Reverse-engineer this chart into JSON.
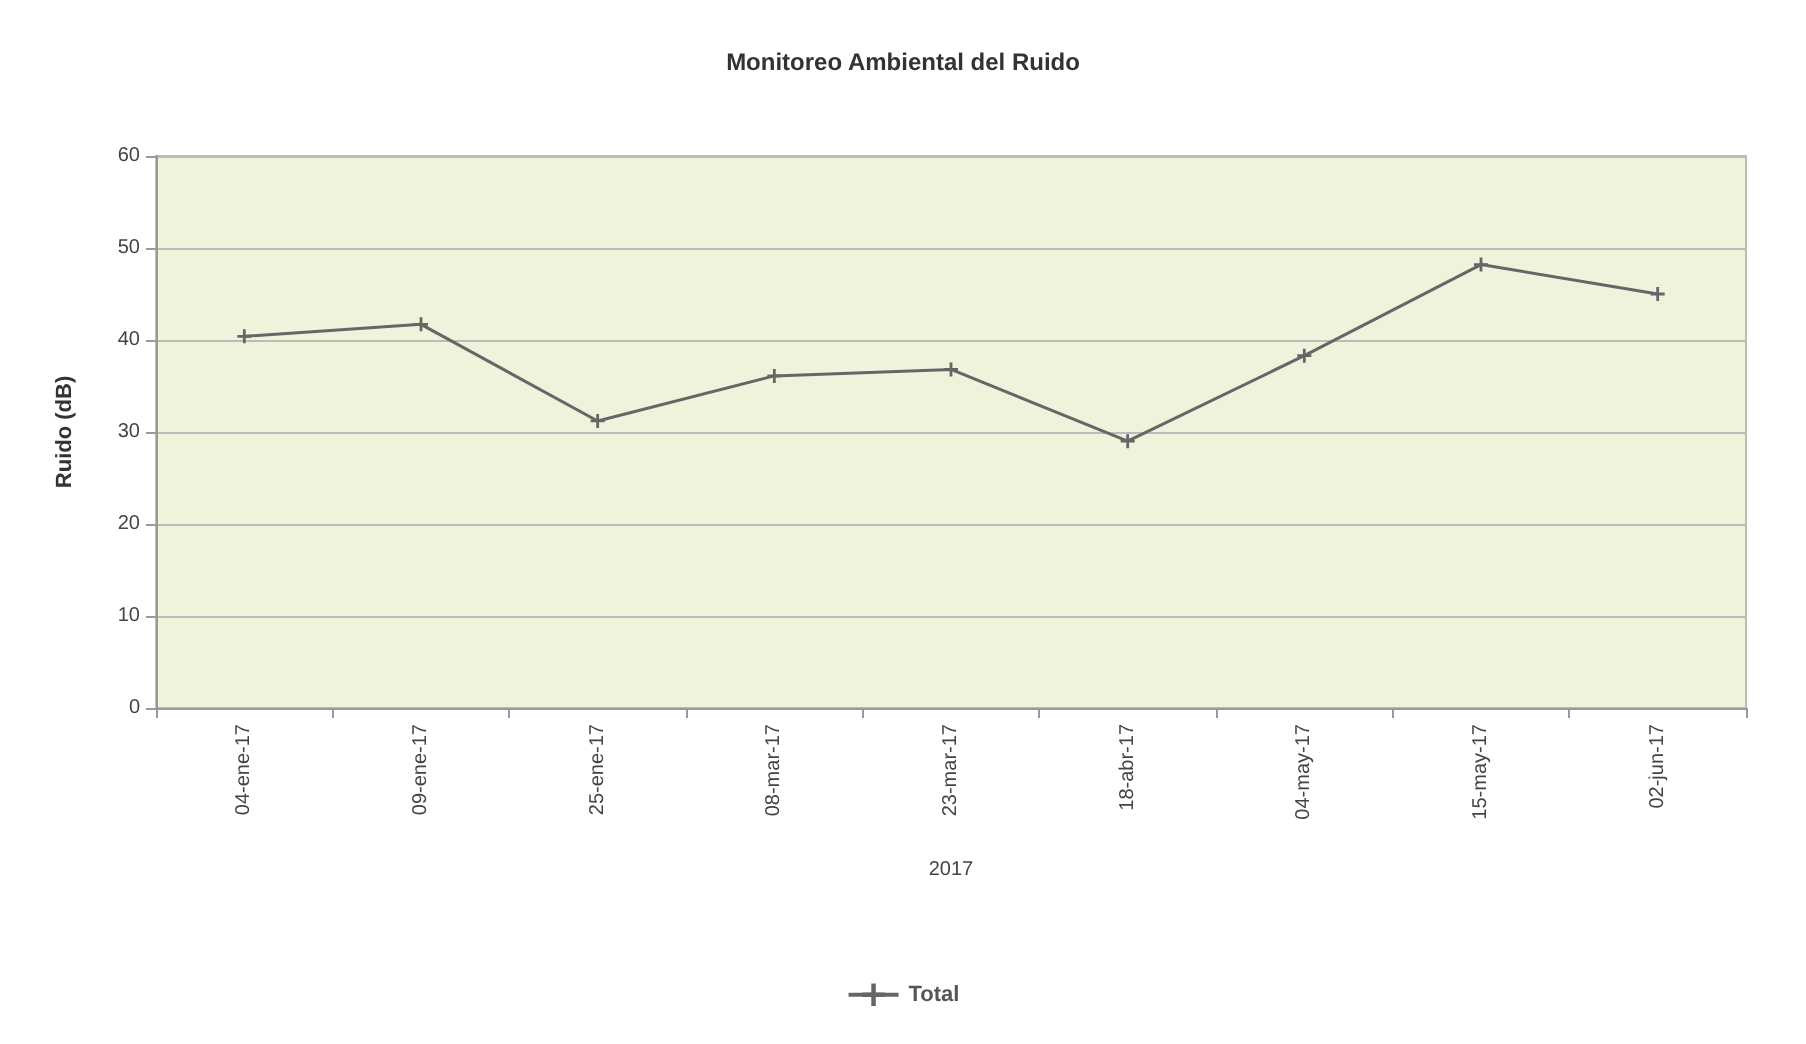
{
  "chart_data": {
    "type": "line",
    "title": "Monitoreo Ambiental del Ruido",
    "xlabel": "2017",
    "ylabel": "Ruido (dB)",
    "categories": [
      "04-ene-17",
      "09-ene-17",
      "25-ene-17",
      "08-mar-17",
      "23-mar-17",
      "18-abr-17",
      "04-may-17",
      "15-may-17",
      "02-jun-17"
    ],
    "series": [
      {
        "name": "Total",
        "color": "#666666",
        "values": [
          40.4,
          41.7,
          31.2,
          36.1,
          36.8,
          29.0,
          38.3,
          48.2,
          45.0
        ]
      }
    ],
    "ylim": [
      0,
      60
    ],
    "yticks": [
      0,
      10,
      20,
      30,
      40,
      50,
      60
    ],
    "grid": "y",
    "legend": "bottom",
    "marker": "cross"
  }
}
